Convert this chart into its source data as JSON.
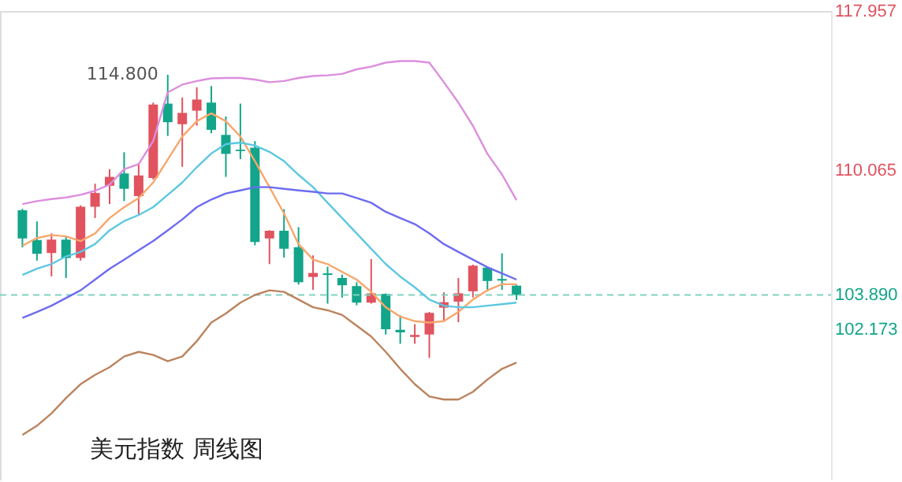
{
  "chart_data": {
    "type": "candlestick",
    "categories": [
      null,
      null,
      null,
      null,
      null,
      null,
      null,
      null,
      null,
      null,
      null,
      null,
      null,
      null,
      null,
      null,
      null,
      null,
      null,
      null,
      null,
      null,
      null,
      null,
      null,
      null,
      null,
      null,
      null,
      null,
      null,
      null,
      null,
      null,
      null
    ],
    "ohlc": [
      [
        108.08,
        108.16,
        106.25,
        106.69
      ],
      [
        106.61,
        107.53,
        105.59,
        105.93
      ],
      [
        105.97,
        106.94,
        104.81,
        106.63
      ],
      [
        106.63,
        106.81,
        104.73,
        105.72
      ],
      [
        105.72,
        108.33,
        105.59,
        108.26
      ],
      [
        108.26,
        109.4,
        107.7,
        108.94
      ],
      [
        109.3,
        110.12,
        108.39,
        109.74
      ],
      [
        109.91,
        110.96,
        108.54,
        109.15
      ],
      [
        108.79,
        110.42,
        107.88,
        109.81
      ],
      [
        109.68,
        113.42,
        109.61,
        113.32
      ],
      [
        113.37,
        114.8,
        111.77,
        112.45
      ],
      [
        112.35,
        113.67,
        110.24,
        112.91
      ],
      [
        113.02,
        114.18,
        112.28,
        113.57
      ],
      [
        113.42,
        114.24,
        111.9,
        112.07
      ],
      [
        111.82,
        112.73,
        109.74,
        110.88
      ],
      [
        111.09,
        113.37,
        110.62,
        111.02
      ],
      [
        111.19,
        111.51,
        106.35,
        106.51
      ],
      [
        106.69,
        107.1,
        105.42,
        107.07
      ],
      [
        107.07,
        108.14,
        105.74,
        106.18
      ],
      [
        106.25,
        107.25,
        104.4,
        104.52
      ],
      [
        104.78,
        105.85,
        104.14,
        104.98
      ],
      [
        104.96,
        105.29,
        103.46,
        104.88
      ],
      [
        104.73,
        104.9,
        103.76,
        104.37
      ],
      [
        104.33,
        104.52,
        103.38,
        103.51
      ],
      [
        103.51,
        105.67,
        103.46,
        103.97
      ],
      [
        103.94,
        103.96,
        101.93,
        102.19
      ],
      [
        102.16,
        102.88,
        101.47,
        102.04
      ],
      [
        101.81,
        102.44,
        101.47,
        101.91
      ],
      [
        101.93,
        103.05,
        100.77,
        103.0
      ],
      [
        103.26,
        104.02,
        102.62,
        103.53
      ],
      [
        103.56,
        104.73,
        102.54,
        103.97
      ],
      [
        104.07,
        105.39,
        103.76,
        105.34
      ],
      [
        105.24,
        105.29,
        104.07,
        104.58
      ],
      [
        104.68,
        105.95,
        104.14,
        104.6
      ],
      [
        104.35,
        104.4,
        103.64,
        103.89
      ]
    ],
    "colors": [
      "#12a58a",
      "#12a58a",
      "#e0535f",
      "#12a58a",
      "#e0535f",
      "#e0535f",
      "#e0535f",
      "#12a58a",
      "#e0535f",
      "#e0535f",
      "#12a58a",
      "#e0535f",
      "#e0535f",
      "#12a58a",
      "#12a58a",
      "#12a58a",
      "#12a58a",
      "#e0535f",
      "#12a58a",
      "#12a58a",
      "#e0535f",
      "#12a58a",
      "#12a58a",
      "#12a58a",
      "#e0535f",
      "#12a58a",
      "#12a58a",
      "#e0535f",
      "#e0535f",
      "#e0535f",
      "#e0535f",
      "#e0535f",
      "#12a58a",
      "#12a58a",
      "#12a58a"
    ],
    "series": [
      {
        "type": "line",
        "color": "#dc8ede",
        "values": [
          108.39,
          108.54,
          108.64,
          108.72,
          108.85,
          109.05,
          109.36,
          110.12,
          110.37,
          111.51,
          113.93,
          114.31,
          114.49,
          114.62,
          114.64,
          114.64,
          114.56,
          114.43,
          114.49,
          114.64,
          114.74,
          114.77,
          114.84,
          115.07,
          115.2,
          115.4,
          115.48,
          115.48,
          115.4,
          114.43,
          113.42,
          112.27,
          110.88,
          109.86,
          108.59
        ]
      },
      {
        "type": "line",
        "color": "#f7a76c",
        "values": [
          106.33,
          106.71,
          106.86,
          106.79,
          106.56,
          106.94,
          107.7,
          108.24,
          108.69,
          109.46,
          110.6,
          111.74,
          112.5,
          112.89,
          112.5,
          111.74,
          110.52,
          109.23,
          107.93,
          106.41,
          105.64,
          105.42,
          105.03,
          104.65,
          104.04,
          103.28,
          102.82,
          102.59,
          102.52,
          102.59,
          103.05,
          103.66,
          104.12,
          104.42,
          104.42
        ]
      },
      {
        "type": "line",
        "color": "#5cc8e2",
        "values": [
          104.88,
          105.19,
          105.42,
          105.8,
          106.02,
          106.41,
          107.09,
          107.55,
          107.85,
          108.24,
          108.85,
          109.46,
          110.22,
          110.9,
          111.36,
          111.44,
          111.29,
          110.98,
          110.52,
          109.84,
          109.23,
          108.46,
          107.7,
          106.94,
          106.18,
          105.42,
          104.8,
          104.27,
          103.66,
          103.36,
          103.28,
          103.28,
          103.36,
          103.43,
          103.51
        ]
      },
      {
        "type": "line",
        "color": "#6d6cf0",
        "values": [
          102.75,
          103.05,
          103.36,
          103.74,
          104.12,
          104.65,
          105.19,
          105.64,
          106.1,
          106.56,
          107.09,
          107.63,
          108.24,
          108.62,
          108.92,
          109.07,
          109.23,
          109.23,
          109.15,
          109.07,
          109.0,
          108.92,
          108.92,
          108.69,
          108.46,
          108.01,
          107.7,
          107.4,
          106.94,
          106.41,
          106.02,
          105.64,
          105.26,
          104.96,
          104.65
        ]
      },
      {
        "type": "line",
        "color": "#bb835e",
        "values": [
          96.95,
          97.41,
          98.02,
          98.78,
          99.47,
          99.93,
          100.31,
          100.84,
          101.07,
          100.92,
          100.61,
          100.84,
          101.6,
          102.52,
          102.97,
          103.51,
          103.89,
          104.12,
          104.04,
          103.66,
          103.28,
          103.13,
          102.9,
          102.37,
          101.83,
          101.07,
          100.23,
          99.47,
          98.86,
          98.71,
          98.71,
          99.09,
          99.7,
          100.23,
          100.54
        ]
      }
    ],
    "ylim": [
      94.7,
      117.957
    ],
    "yticks": [
      117.957,
      110.065,
      {
        "value": 103.89,
        "label": "103.890"
      },
      102.173
    ],
    "ref_lines": [
      {
        "axis": "y",
        "value": 103.89,
        "color": "#7fd3c0",
        "line_style": "dashed"
      }
    ],
    "annotations": [
      "114.800",
      "美元指数 周线图"
    ],
    "tick_labels": "y",
    "grid": false
  }
}
